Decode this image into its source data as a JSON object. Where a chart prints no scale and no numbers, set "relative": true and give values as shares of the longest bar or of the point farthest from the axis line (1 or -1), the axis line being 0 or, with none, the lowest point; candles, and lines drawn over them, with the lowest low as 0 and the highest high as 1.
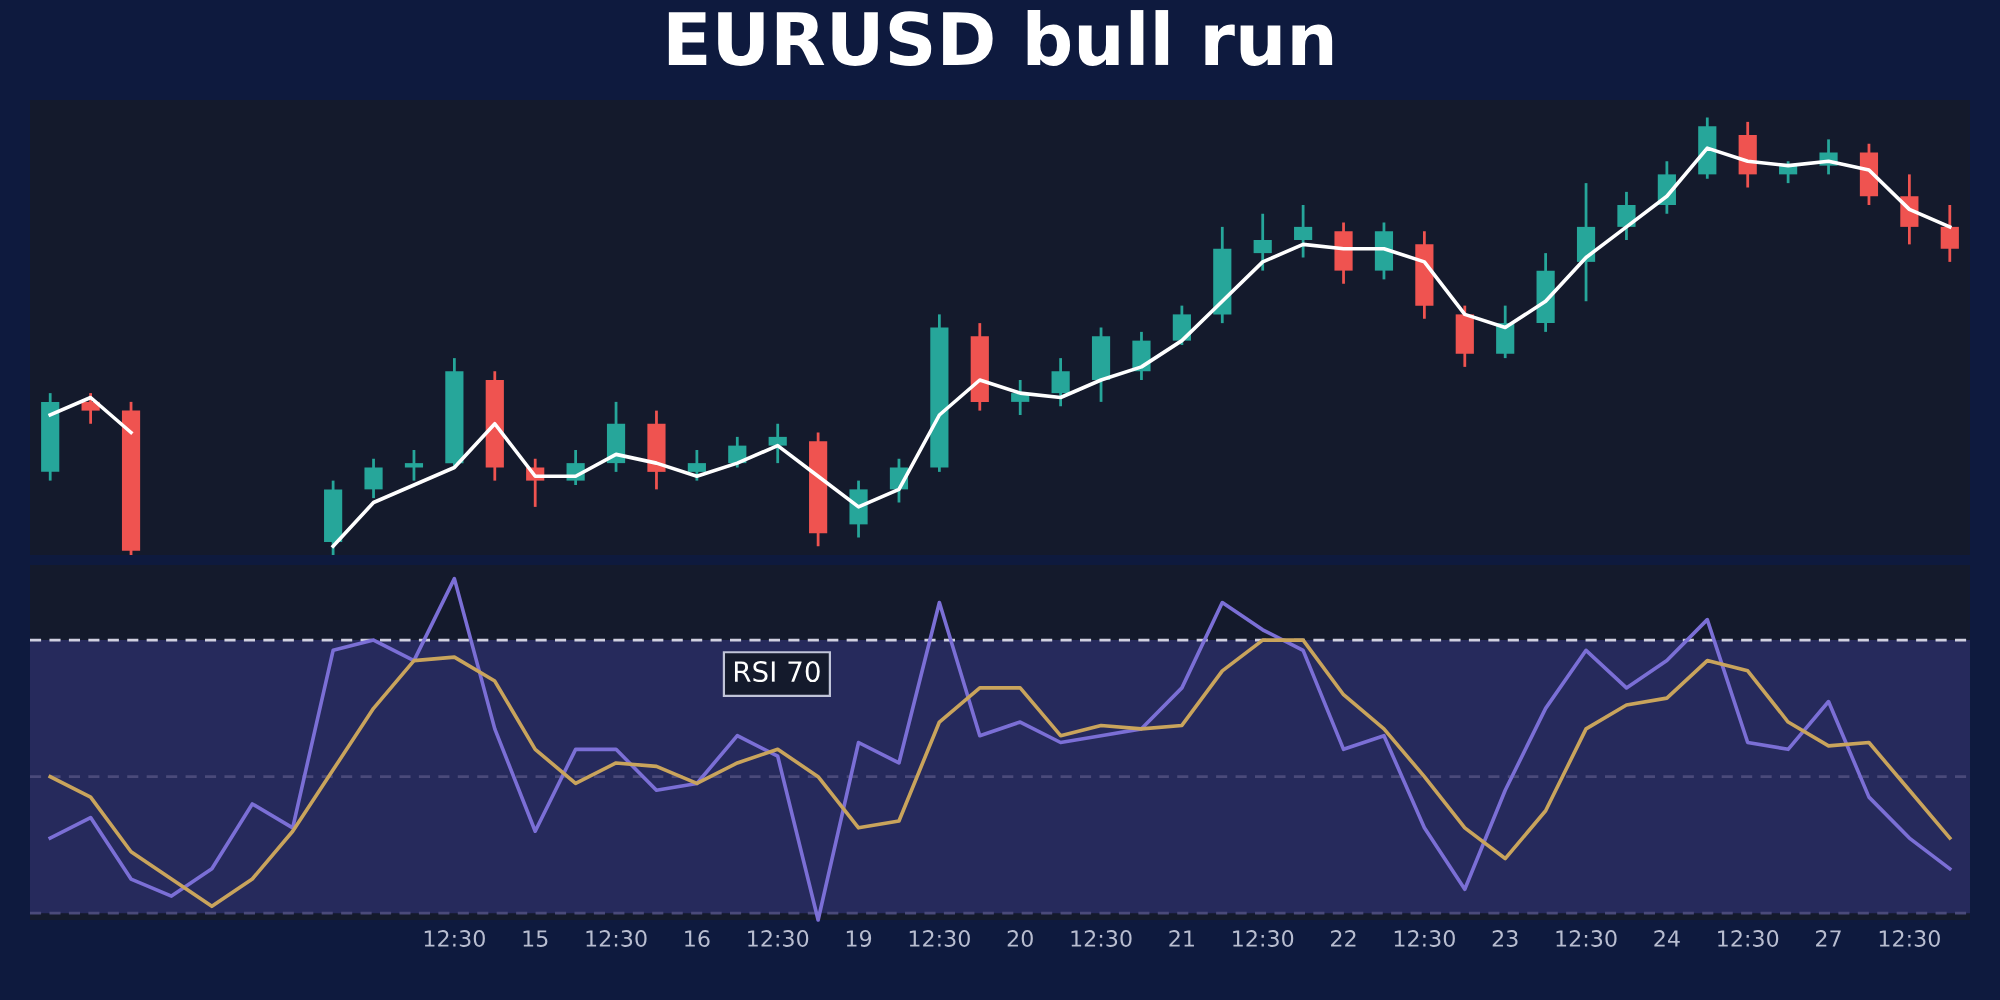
{
  "chart_data": [
    {
      "type": "candlestick",
      "title": "EURUSD bull run",
      "relative": true,
      "tick_labels": false,
      "grid": false,
      "categories": [
        null,
        null,
        null,
        null,
        null,
        null,
        null,
        null,
        null,
        null,
        null,
        null,
        null,
        null,
        null,
        null,
        null,
        null,
        null,
        null,
        null,
        null,
        null,
        null,
        null,
        null,
        null,
        null,
        null,
        null,
        null,
        null,
        null,
        null,
        null,
        null,
        null,
        null,
        null,
        null,
        null,
        null,
        null,
        null,
        null,
        null,
        null,
        null
      ],
      "ohlc": [
        [
          0.19,
          0.37,
          0.17,
          0.35
        ],
        [
          0.35,
          0.37,
          0.3,
          0.33
        ],
        [
          0.33,
          0.35,
          0.0,
          0.01
        ],
        null,
        null,
        null,
        null,
        [
          0.03,
          0.17,
          0.0,
          0.15
        ],
        [
          0.15,
          0.22,
          0.13,
          0.2
        ],
        [
          0.2,
          0.24,
          0.17,
          0.21
        ],
        [
          0.21,
          0.45,
          0.2,
          0.42
        ],
        [
          0.4,
          0.42,
          0.17,
          0.2
        ],
        [
          0.2,
          0.22,
          0.11,
          0.17
        ],
        [
          0.17,
          0.24,
          0.16,
          0.21
        ],
        [
          0.21,
          0.35,
          0.19,
          0.3
        ],
        [
          0.3,
          0.33,
          0.15,
          0.19
        ],
        [
          0.19,
          0.24,
          0.17,
          0.21
        ],
        [
          0.21,
          0.27,
          0.2,
          0.25
        ],
        [
          0.25,
          0.3,
          0.21,
          0.27
        ],
        [
          0.26,
          0.28,
          0.02,
          0.05
        ],
        [
          0.07,
          0.17,
          0.04,
          0.15
        ],
        [
          0.15,
          0.22,
          0.12,
          0.2
        ],
        [
          0.2,
          0.55,
          0.19,
          0.52
        ],
        [
          0.5,
          0.53,
          0.33,
          0.35
        ],
        [
          0.35,
          0.4,
          0.32,
          0.37
        ],
        [
          0.37,
          0.45,
          0.34,
          0.42
        ],
        [
          0.4,
          0.52,
          0.35,
          0.5
        ],
        [
          0.42,
          0.51,
          0.4,
          0.49
        ],
        [
          0.49,
          0.57,
          0.48,
          0.55
        ],
        [
          0.55,
          0.75,
          0.53,
          0.7
        ],
        [
          0.69,
          0.78,
          0.65,
          0.72
        ],
        [
          0.72,
          0.8,
          0.68,
          0.75
        ],
        [
          0.74,
          0.76,
          0.62,
          0.65
        ],
        [
          0.65,
          0.76,
          0.63,
          0.74
        ],
        [
          0.71,
          0.74,
          0.54,
          0.57
        ],
        [
          0.55,
          0.57,
          0.43,
          0.46
        ],
        [
          0.46,
          0.57,
          0.45,
          0.53
        ],
        [
          0.53,
          0.69,
          0.51,
          0.65
        ],
        [
          0.67,
          0.85,
          0.58,
          0.75
        ],
        [
          0.75,
          0.83,
          0.72,
          0.8
        ],
        [
          0.8,
          0.9,
          0.78,
          0.87
        ],
        [
          0.87,
          1.0,
          0.86,
          0.98
        ],
        [
          0.96,
          0.99,
          0.84,
          0.87
        ],
        [
          0.87,
          0.9,
          0.85,
          0.89
        ],
        [
          0.89,
          0.95,
          0.87,
          0.92
        ],
        [
          0.92,
          0.94,
          0.8,
          0.82
        ],
        [
          0.82,
          0.87,
          0.71,
          0.75
        ],
        [
          0.75,
          0.8,
          0.67,
          0.7
        ]
      ],
      "colors": [
        "#26a69a",
        "#ef5350",
        "#ef5350",
        null,
        null,
        null,
        null,
        "#26a69a",
        "#26a69a",
        "#26a69a",
        "#26a69a",
        "#ef5350",
        "#ef5350",
        "#26a69a",
        "#26a69a",
        "#ef5350",
        "#26a69a",
        "#26a69a",
        "#26a69a",
        "#ef5350",
        "#26a69a",
        "#26a69a",
        "#26a69a",
        "#ef5350",
        "#26a69a",
        "#26a69a",
        "#26a69a",
        "#26a69a",
        "#26a69a",
        "#26a69a",
        "#26a69a",
        "#26a69a",
        "#ef5350",
        "#26a69a",
        "#ef5350",
        "#ef5350",
        "#26a69a",
        "#26a69a",
        "#26a69a",
        "#26a69a",
        "#26a69a",
        "#26a69a",
        "#ef5350",
        "#26a69a",
        "#26a69a",
        "#ef5350",
        "#ef5350",
        "#ef5350"
      ],
      "series": [
        {
          "type": "line",
          "color": "#ffffff",
          "values": [
            0.32,
            0.36,
            0.28,
            null,
            null,
            null,
            null,
            0.02,
            0.12,
            0.16,
            0.2,
            0.3,
            0.18,
            0.18,
            0.23,
            0.21,
            0.18,
            0.21,
            0.25,
            0.18,
            0.11,
            0.15,
            0.32,
            0.4,
            0.37,
            0.36,
            0.4,
            0.43,
            0.49,
            0.58,
            0.67,
            0.71,
            0.7,
            0.7,
            0.67,
            0.55,
            0.52,
            0.58,
            0.68,
            0.75,
            0.82,
            0.93,
            0.9,
            0.89,
            0.9,
            0.88,
            0.79,
            0.75
          ]
        }
      ]
    },
    {
      "type": "line",
      "relative": true,
      "tick_labels": "x",
      "grid": false,
      "categories": [
        null,
        null,
        null,
        null,
        null,
        null,
        null,
        null,
        null,
        null,
        "12:30",
        null,
        "15",
        null,
        "12:30",
        null,
        "16",
        null,
        "12:30",
        null,
        "19",
        null,
        "12:30",
        null,
        "20",
        null,
        "12:30",
        null,
        "21",
        null,
        "12:30",
        null,
        "22",
        null,
        "12:30",
        null,
        "23",
        null,
        "12:30",
        null,
        "24",
        null,
        "12:30",
        null,
        "27",
        null,
        "12:30",
        null
      ],
      "series": [
        {
          "color": "#7b6fd6",
          "values": [
            0.24,
            0.3,
            0.12,
            0.07,
            0.15,
            0.34,
            0.27,
            0.79,
            0.82,
            0.76,
            1.0,
            0.56,
            0.26,
            0.5,
            0.5,
            0.38,
            0.4,
            0.54,
            0.48,
            0.0,
            0.52,
            0.46,
            0.93,
            0.54,
            0.58,
            0.52,
            0.54,
            0.56,
            0.68,
            0.93,
            0.85,
            0.79,
            0.5,
            0.54,
            0.27,
            0.09,
            0.38,
            0.62,
            0.79,
            0.68,
            0.76,
            0.88,
            0.52,
            0.5,
            0.64,
            0.36,
            0.24,
            0.15
          ]
        },
        {
          "color": "#c9a45c",
          "values": [
            0.42,
            0.36,
            0.2,
            0.12,
            0.04,
            0.12,
            0.26,
            0.44,
            0.62,
            0.76,
            0.77,
            0.7,
            0.5,
            0.4,
            0.46,
            0.45,
            0.4,
            0.46,
            0.5,
            0.42,
            0.27,
            0.29,
            0.58,
            0.68,
            0.68,
            0.54,
            0.57,
            0.56,
            0.57,
            0.73,
            0.82,
            0.82,
            0.66,
            0.56,
            0.42,
            0.27,
            0.18,
            0.32,
            0.56,
            0.63,
            0.65,
            0.76,
            0.73,
            0.58,
            0.51,
            0.52,
            0.38,
            0.24
          ]
        }
      ],
      "ref_lines": [
        {
          "axis": "y",
          "value": 0.82,
          "label": "RSI 70",
          "color": "#d0d0e0",
          "line_style": "dashed"
        },
        {
          "axis": "y",
          "value": 0.42,
          "color": "#4a4a7a",
          "line_style": "dashed"
        },
        {
          "axis": "y",
          "value": 0.02,
          "color": "#4a4a7a",
          "line_style": "dashed"
        }
      ],
      "bands": [
        {
          "axis": "y",
          "from": 0.02,
          "to": 0.82,
          "color": "#262a5c"
        }
      ]
    }
  ]
}
